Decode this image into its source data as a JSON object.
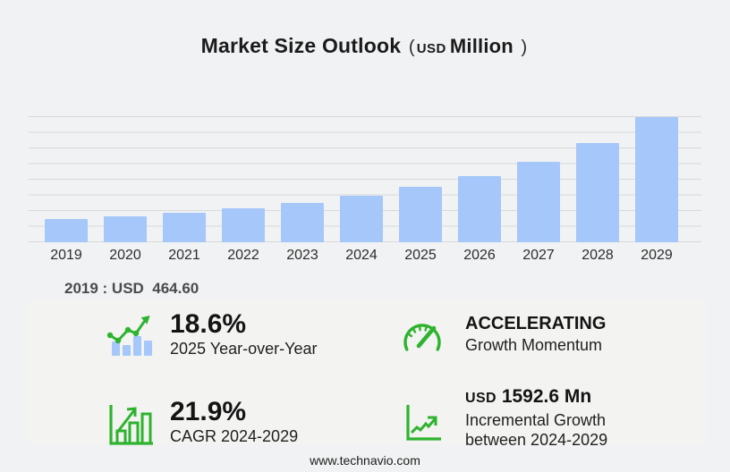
{
  "title": {
    "main": "Market Size Outlook",
    "paren_open": "(",
    "currency": "USD",
    "unit": "Million",
    "paren_close": ")"
  },
  "chart_data": {
    "type": "bar",
    "title": "Market Size Outlook",
    "unit": "USD Million",
    "categories": [
      "2019",
      "2020",
      "2021",
      "2022",
      "2023",
      "2024",
      "2025",
      "2026",
      "2027",
      "2028",
      "2029"
    ],
    "values": [
      464.6,
      525,
      600,
      690,
      800,
      941.3,
      1116.4,
      1340,
      1630,
      2010,
      2533.9
    ],
    "xlabel": "",
    "ylabel": "",
    "ylim": [
      0,
      2533.9
    ],
    "grid": "horizontal",
    "gridline_count": 9,
    "legend": "none",
    "bar_color": "#a6c7fa"
  },
  "annotation": {
    "base_year": "2019 : USD  464.60"
  },
  "stats": {
    "yoy": {
      "value": "18.6%",
      "label": "2025 Year-over-Year",
      "icon": "bar-chart-trend-icon"
    },
    "momentum": {
      "value": "ACCELERATING",
      "label": "Growth Momentum",
      "icon": "speedometer-icon"
    },
    "cagr": {
      "value": "21.9%",
      "label": "CAGR 2024-2029",
      "icon": "growth-bars-arrow-icon"
    },
    "incremental": {
      "currency": "USD",
      "value": "1592.6 Mn",
      "label_line1": "Incremental Growth",
      "label_line2": "between 2024-2029",
      "icon": "rising-line-graph-icon"
    }
  },
  "footer": {
    "url": "www.technavio.com"
  },
  "colors": {
    "bar": "#a6c7fa",
    "green": "#2eb32e",
    "grid": "#d8d8da",
    "page_bg": "#f1f2f3",
    "panel_bg": "#f3f3f2"
  }
}
